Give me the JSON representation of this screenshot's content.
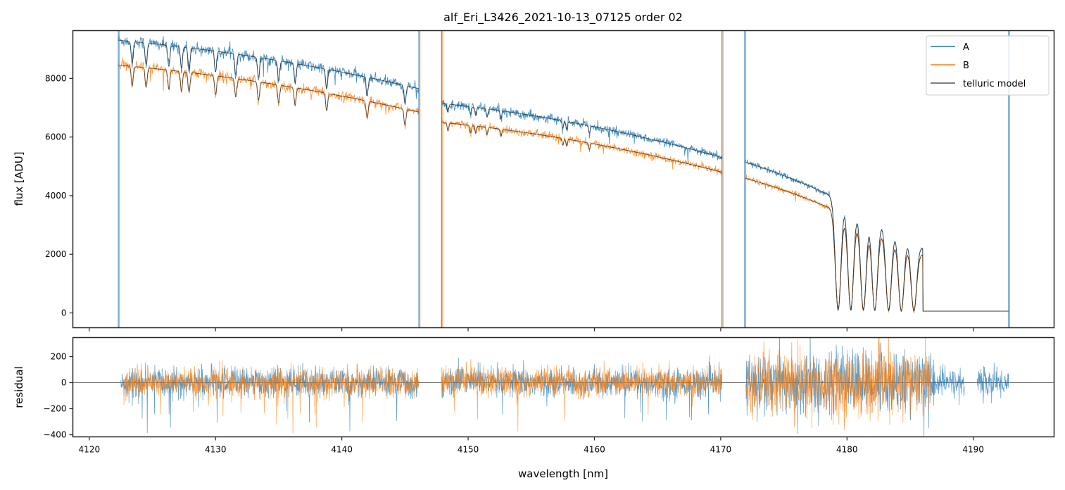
{
  "chart_data": [
    {
      "panel": "flux",
      "type": "line",
      "title": "alf_Eri_L3426_2021-10-13_07125  order 02",
      "xlabel": "",
      "ylabel": "flux [ADU]",
      "xlim": [
        4118.7,
        4196.4
      ],
      "ylim": [
        -505,
        9630
      ],
      "yticks": [
        0,
        2000,
        4000,
        6000,
        8000
      ],
      "ytick_labels": [
        "0",
        "2000",
        "4000",
        "6000",
        "8000"
      ],
      "grid": false,
      "legend": {
        "placement": "top-right",
        "entries": [
          {
            "label": "A",
            "color": "#1f77b4"
          },
          {
            "label": "B",
            "color": "#ff7f0e"
          },
          {
            "label": "telluric model",
            "color": "#555555"
          }
        ]
      },
      "segments": [
        {
          "xstart": 4122.3,
          "xend": 4146.1,
          "A_start": 9300,
          "A_end": 7650,
          "B_start": 8450,
          "B_end": 6850
        },
        {
          "xstart": 4147.9,
          "xend": 4170.1,
          "A_start": 7150,
          "A_end": 5300,
          "B_start": 6500,
          "B_end": 4800
        },
        {
          "xstart": 4171.9,
          "xend": 4192.8,
          "A_start": 5150,
          "A_end": 50,
          "B_start": 4600,
          "B_end": 50
        }
      ],
      "telluric_line_centers": [
        4123.4,
        4124.5,
        4126.3,
        4127.3,
        4127.9,
        4130.0,
        4131.6,
        4133.4,
        4135.0,
        4136.3,
        4138.8,
        4142.0,
        4145.0,
        4148.4,
        4150.2,
        4150.6,
        4151.5,
        4152.6,
        4157.5,
        4157.8,
        4159.6,
        4179.3,
        4180.3,
        4181.3,
        4182.2,
        4183.3,
        4184.3,
        4185.3
      ]
    },
    {
      "panel": "residual",
      "type": "line",
      "xlabel": "wavelength [nm]",
      "ylabel": "residual",
      "xlim": [
        4118.7,
        4196.4
      ],
      "ylim": [
        -416,
        346
      ],
      "yticks": [
        -400,
        -200,
        0,
        200
      ],
      "ytick_labels": [
        "−400",
        "−200",
        "0",
        "200"
      ],
      "xticks": [
        4120,
        4130,
        4140,
        4150,
        4160,
        4170,
        4180,
        4190
      ],
      "xtick_labels": [
        "4120",
        "4130",
        "4140",
        "4150",
        "4160",
        "4170",
        "4180",
        "4190"
      ],
      "grid": false,
      "zero_line": 0,
      "series": [
        {
          "name": "A",
          "color": "#1f77b4",
          "noise_std": 55,
          "ranges": [
            [
              4122.5,
              4146.1
            ],
            [
              4147.9,
              4170.1
            ],
            [
              4172.0,
              4189.3
            ],
            [
              4190.3,
              4192.8
            ]
          ]
        },
        {
          "name": "B",
          "color": "#ff7f0e",
          "noise_std": 55,
          "ranges": [
            [
              4122.7,
              4146.1
            ],
            [
              4147.9,
              4170.1
            ],
            [
              4172.0,
              4186.7
            ]
          ]
        }
      ]
    }
  ],
  "colors": {
    "A": "#1f77b4",
    "B": "#ff7f0e",
    "model": "#222222",
    "axes": "#262626"
  }
}
